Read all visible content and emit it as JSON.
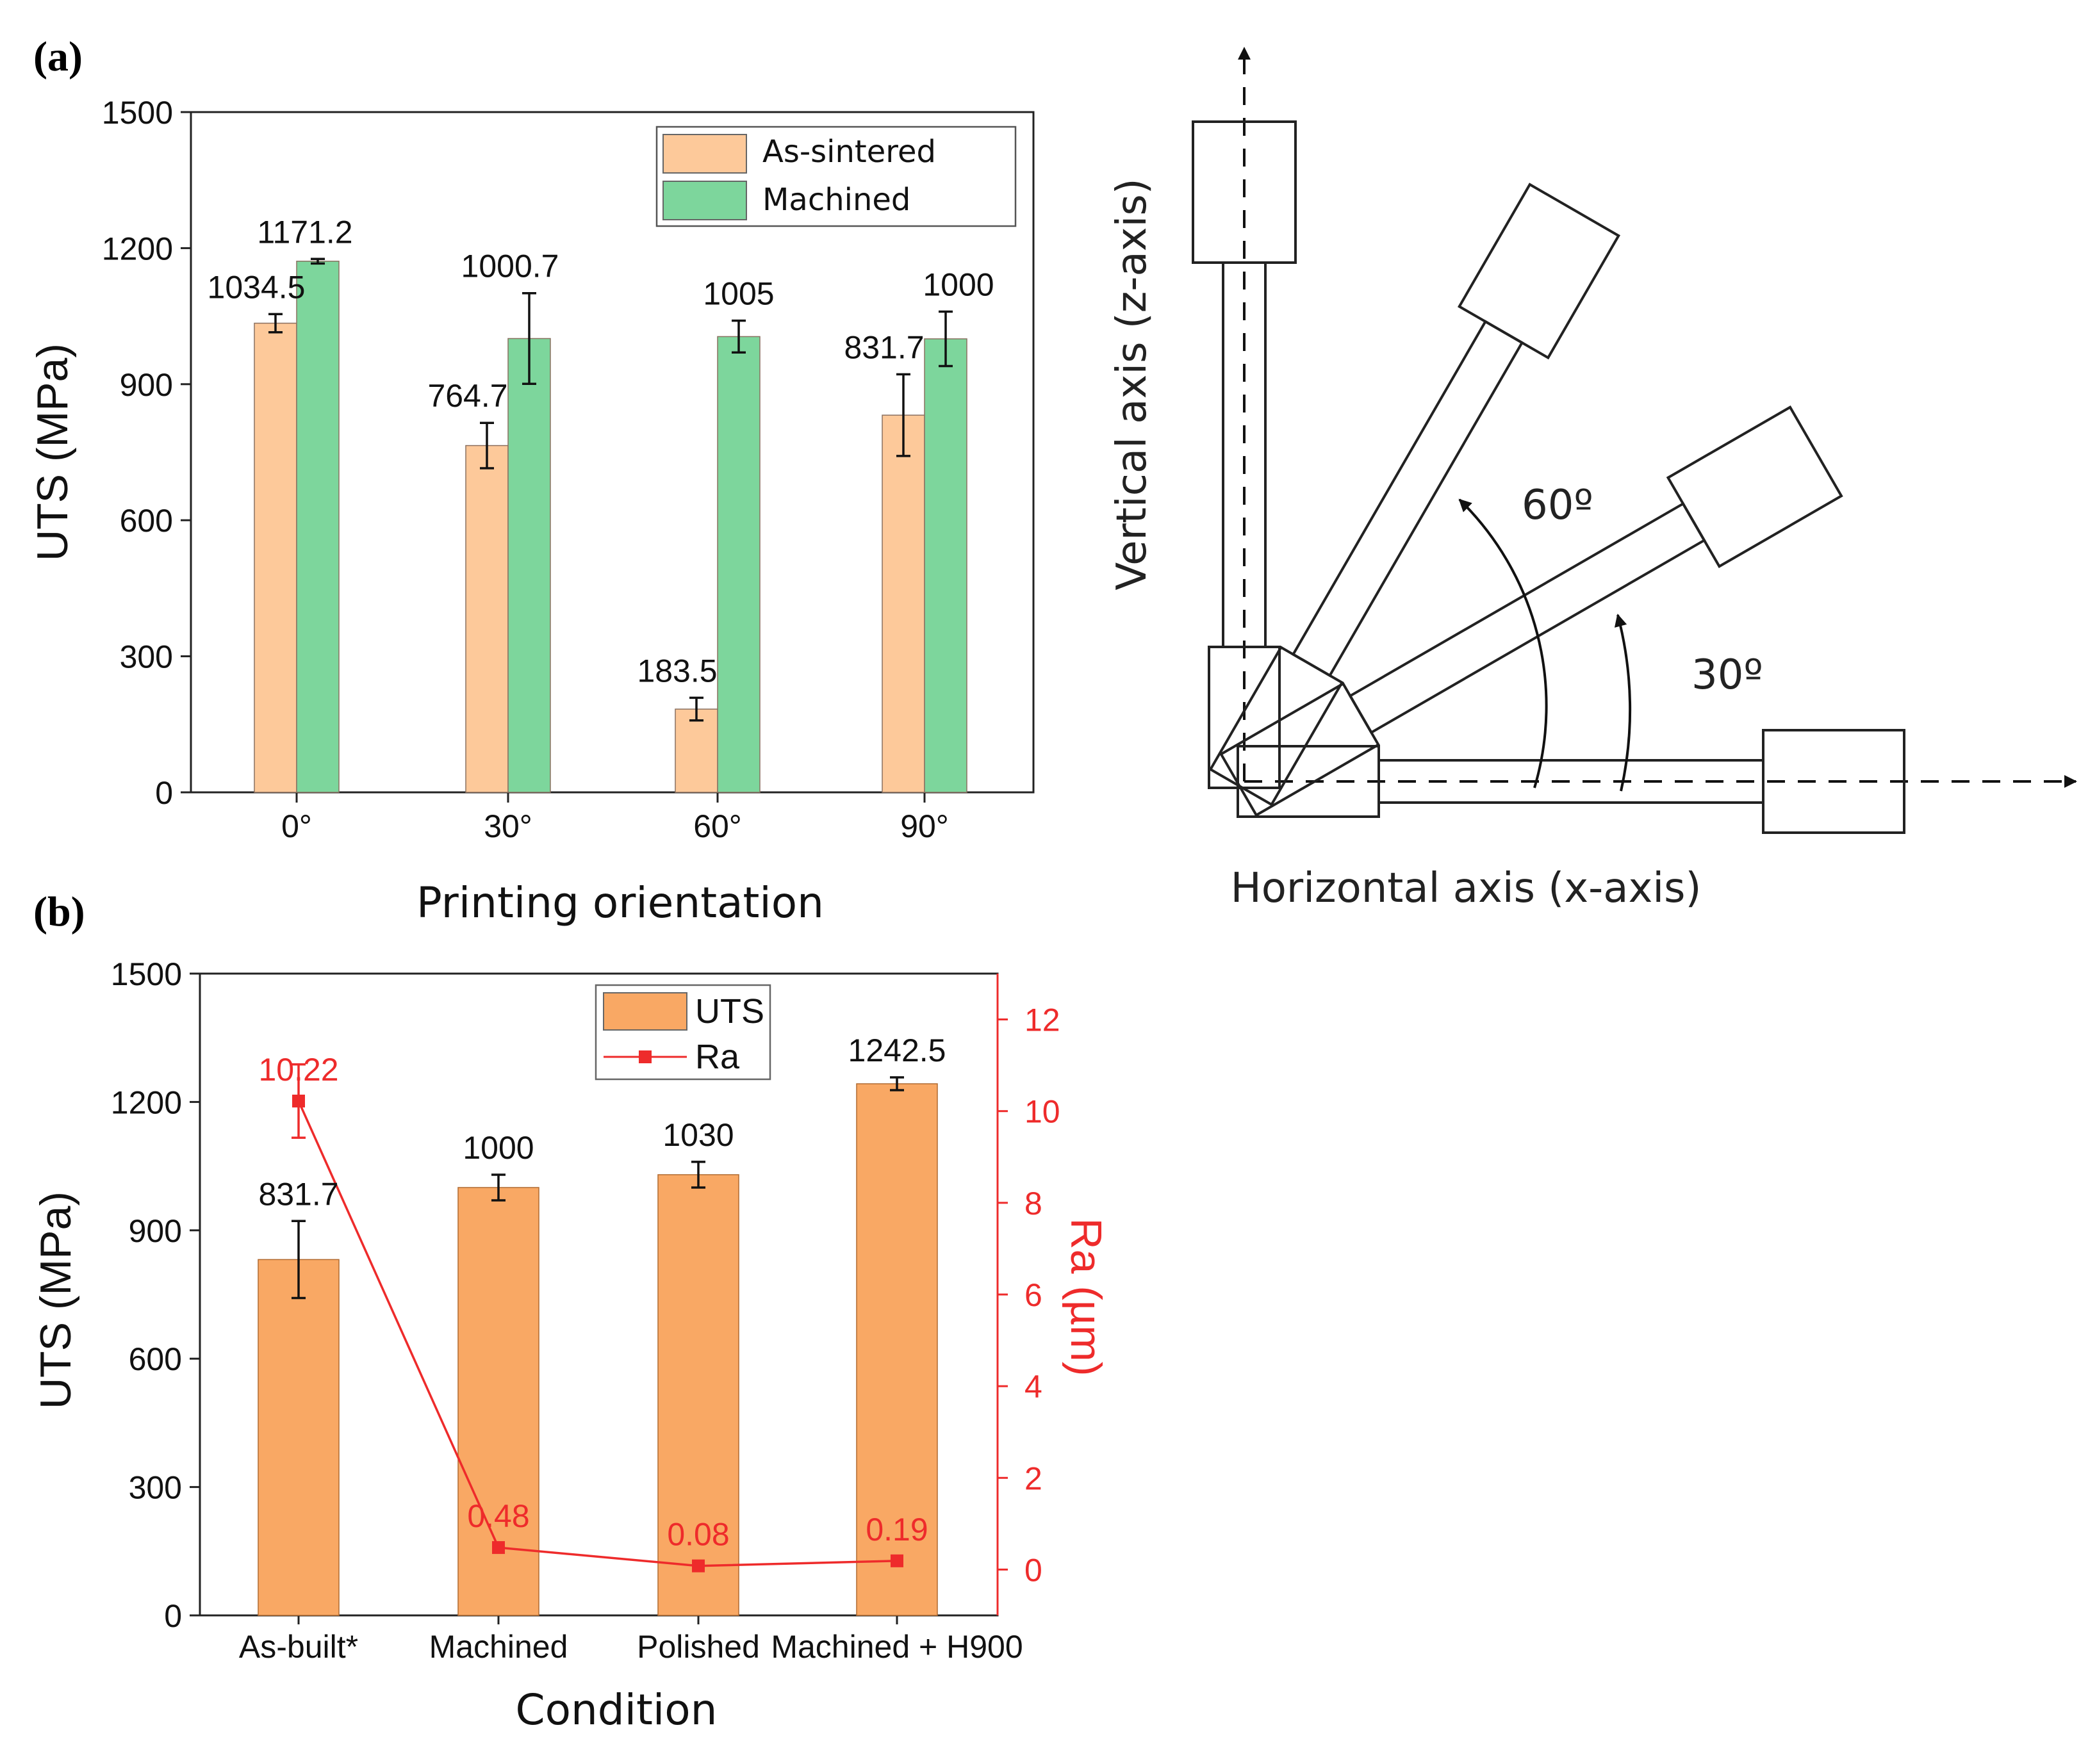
{
  "panels": {
    "a_label": "(a)",
    "b_label": "(b)"
  },
  "chart_data": [
    {
      "type": "bar",
      "title": "",
      "xlabel": "Printing orientation",
      "ylabel": "UTS (MPa)",
      "ylim": [
        0,
        1500
      ],
      "yticks": [
        0,
        300,
        600,
        900,
        1200,
        1500
      ],
      "categories": [
        "0°",
        "30°",
        "60°",
        "90°"
      ],
      "legend_position": "top-right",
      "series": [
        {
          "name": "As-sintered",
          "color": "#fdc99a",
          "values": [
            1034.5,
            764.7,
            183.5,
            831.7
          ],
          "errors": [
            20,
            50,
            25,
            90
          ],
          "labels": [
            "1034.5",
            "764.7",
            "183.5",
            "831.7"
          ]
        },
        {
          "name": "Machined",
          "color": "#7dd69c",
          "values": [
            1171.2,
            1000.7,
            1005,
            1000
          ],
          "errors": [
            5,
            100,
            35,
            60
          ],
          "labels": [
            "1171.2",
            "1000.7",
            "1005",
            "1000"
          ]
        }
      ]
    },
    {
      "type": "bar",
      "title": "",
      "xlabel": "Condition",
      "ylabel": "UTS (MPa)",
      "ylim": [
        0,
        1500
      ],
      "yticks": [
        0,
        300,
        600,
        900,
        1200,
        1500
      ],
      "y2label": "Ra (µm)",
      "y2lim": [
        -1,
        13
      ],
      "y2ticks": [
        0,
        2,
        4,
        6,
        8,
        10,
        12
      ],
      "categories": [
        "As-built*",
        "Machined",
        "Polished",
        "Machined + H900"
      ],
      "legend_position": "top-center",
      "series": [
        {
          "name": "UTS",
          "kind": "bar",
          "color": "#f9a864",
          "values": [
            831.7,
            1000,
            1030,
            1242.5
          ],
          "errors": [
            90,
            30,
            30,
            15
          ],
          "labels": [
            "831.7",
            "1000",
            "1030",
            "1242.5"
          ]
        },
        {
          "name": "Ra",
          "kind": "line",
          "axis": "right",
          "color": "#ee2b2b",
          "values": [
            10.22,
            0.48,
            0.08,
            0.19
          ],
          "errors": [
            0.8,
            0,
            0,
            0
          ],
          "labels": [
            "10.22",
            "0.48",
            "0.08",
            "0.19"
          ]
        }
      ]
    }
  ],
  "diagram": {
    "vertical_axis_label": "Vertical axis   (z-axis)",
    "horizontal_axis_label": "Horizontal axis (x-axis)",
    "angle_60_label": "60º",
    "angle_30_label": "30º",
    "specimen_angles": [
      0,
      30,
      60,
      90
    ]
  }
}
